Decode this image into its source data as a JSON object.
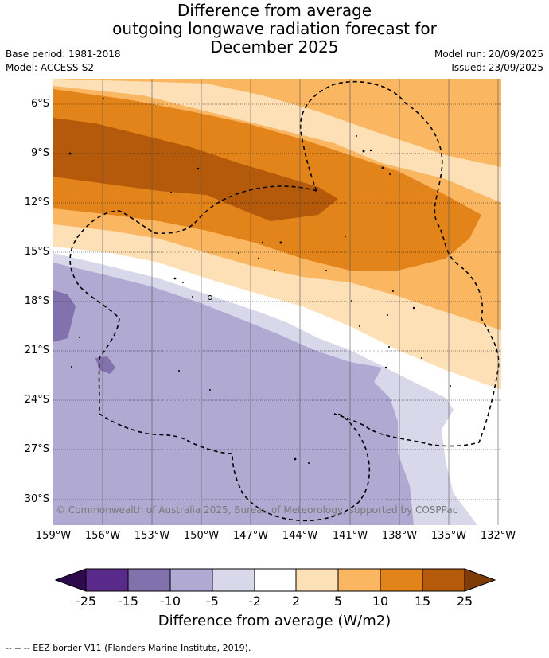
{
  "header": {
    "title_line1": "Difference from average",
    "title_line2": "outgoing longwave radiation forecast for",
    "title_line3": "December 2025",
    "base_period": "Base period: 1981-2018",
    "model": "Model: ACCESS-S2",
    "model_run": "Model run: 20/09/2025",
    "issued": "Issued: 23/09/2025"
  },
  "axes": {
    "lat_labels": [
      "6°S",
      "9°S",
      "12°S",
      "15°S",
      "18°S",
      "21°S",
      "24°S",
      "27°S",
      "30°S"
    ],
    "lon_labels": [
      "159°W",
      "156°W",
      "153°W",
      "150°W",
      "147°W",
      "144°W",
      "141°W",
      "138°W",
      "135°W",
      "132°W"
    ]
  },
  "map": {
    "copyright": "© Commonwealth of Australia 2025, Bureau of Meteorology, supported by COSPPac"
  },
  "colorbar": {
    "ticks": [
      "-25",
      "-15",
      "-10",
      "-5",
      "-2",
      "2",
      "5",
      "10",
      "15",
      "25"
    ],
    "label": "Difference from average (W/m2)",
    "colors": {
      "below": "#2d0a4e",
      "c1": "#5a2a8a",
      "c2": "#8171ad",
      "c3": "#b0a9d2",
      "c4": "#d8d8ea",
      "c5": "#ffffff",
      "c6": "#fde0b6",
      "c7": "#fbb662",
      "c8": "#e3841a",
      "c9": "#b45a0a",
      "above": "#7f3b08"
    }
  },
  "footer": {
    "legend": "--  --  -- EEZ border V11 (Flanders Marine Institute, 2019)."
  }
}
